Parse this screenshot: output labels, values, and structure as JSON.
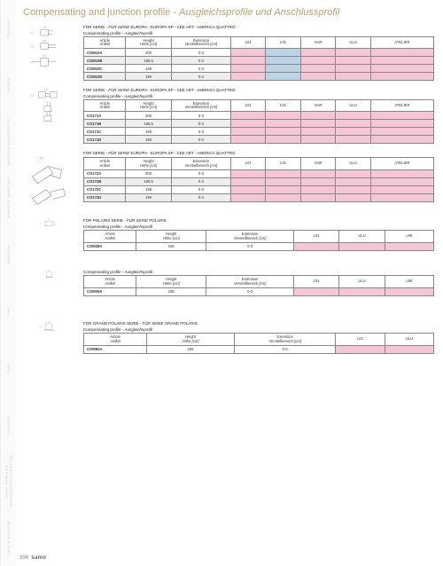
{
  "page_number": "396",
  "brand": "samo",
  "title_a": "Compensating and junction profile",
  "title_b": "Ausgleichsprofile und Anschlussprofil",
  "side_tabs": [
    "POLARIS",
    "ACRUX",
    "AMERICA QUATTRO SP",
    "AMERICA QUATTRO",
    "AMERICA",
    "CEE",
    "FLEX",
    "POLARIS",
    "BATH SCREENS BADEWANNENAUFSÄTZE",
    "INFO & SERVICE"
  ],
  "colors": {
    "pink": "#f5c6d6",
    "blue": "#bdd3e6",
    "grey": "#eeeeee",
    "border": "#888888"
  },
  "sections": [
    {
      "id": "s1",
      "serie": "FOR SERIE - FÜR SERIE EUROPA - EUROPA SP - CEE ART - AMERICA QUATTRO",
      "sub": "Compensating profile - Ausgleichsprofil",
      "dims": [
        "1,8",
        "4,1",
        "2,8",
        "1,8",
        "2,8",
        "1,8"
      ],
      "headers": [
        {
          "a": "Article",
          "b": "Artikel",
          "w": "12%"
        },
        {
          "a": "Height",
          "b": "Höhe [cm]",
          "w": "13%"
        },
        {
          "a": "Extension",
          "b": "Verstellbereich [cm]",
          "w": "17%"
        },
        {
          "a": "L01",
          "b": "",
          "w": "10%"
        },
        {
          "a": "L01",
          "b": "",
          "w": "10%"
        },
        {
          "a": "SAR",
          "b": "",
          "w": "10%"
        },
        {
          "a": "ULU",
          "b": "",
          "w": "10%"
        },
        {
          "a": "ATELIER",
          "b": "",
          "w": "18%"
        }
      ],
      "rows": [
        {
          "art": "COM10A",
          "h": "200",
          "e": "0-3",
          "c": [
            "pink",
            "blue",
            "pink",
            "pink",
            "pink"
          ]
        },
        {
          "art": "COM10B",
          "h": "196,5",
          "e": "0-3",
          "c": [
            "pink",
            "blue",
            "pink",
            "pink",
            "pink"
          ],
          "grey": true
        },
        {
          "art": "COM10C",
          "h": "195",
          "e": "0-3",
          "c": [
            "pink",
            "blue",
            "pink",
            "pink",
            "pink"
          ]
        },
        {
          "art": "COM10D",
          "h": "190",
          "e": "0-3",
          "c": [
            "pink",
            "blue",
            "pink",
            "pink",
            "pink"
          ],
          "grey": true
        }
      ]
    },
    {
      "id": "s2",
      "serie": "FOR SERIE - FÜR SERIE EUROPA - EUROPA SP - CEE ART - AMERICA QUATTRO",
      "sub": "Compensating profile - Ausgleichsprofil",
      "dims": [
        "1,9",
        "2,5"
      ],
      "headers": [
        {
          "a": "Article",
          "b": "Artikel",
          "w": "12%"
        },
        {
          "a": "Height",
          "b": "Höhe [cm]",
          "w": "13%"
        },
        {
          "a": "Extension",
          "b": "Verstellbereich [cm]",
          "w": "17%"
        },
        {
          "a": "L01",
          "b": "",
          "w": "10%"
        },
        {
          "a": "L01",
          "b": "",
          "w": "10%"
        },
        {
          "a": "SAR",
          "b": "",
          "w": "10%"
        },
        {
          "a": "ULU",
          "b": "",
          "w": "10%"
        },
        {
          "a": "ATELIER",
          "b": "",
          "w": "18%"
        }
      ],
      "rows": [
        {
          "art": "CO171A",
          "h": "200",
          "e": "0-3",
          "c": [
            "pink",
            "pink",
            "pink",
            "pink",
            "pink"
          ]
        },
        {
          "art": "CO171B",
          "h": "196,5",
          "e": "0-3",
          "c": [
            "pink",
            "pink",
            "pink",
            "pink",
            "pink"
          ],
          "grey": true
        },
        {
          "art": "CO171C",
          "h": "195",
          "e": "0-3",
          "c": [
            "pink",
            "pink",
            "pink",
            "pink",
            "pink"
          ]
        },
        {
          "art": "CO171D",
          "h": "190",
          "e": "0-3",
          "c": [
            "pink",
            "pink",
            "pink",
            "pink",
            "pink"
          ],
          "grey": true
        }
      ]
    },
    {
      "id": "s3",
      "serie": "FOR SERIE - FÜR SERIE EUROPA - EUROPA SP - CEE ART - AMERICA QUATTRO",
      "sub": "",
      "dims": [
        "4,5"
      ],
      "headers": [
        {
          "a": "Article",
          "b": "Artikel",
          "w": "12%"
        },
        {
          "a": "Height",
          "b": "Höhe [cm]",
          "w": "13%"
        },
        {
          "a": "Extension",
          "b": "Verstellbereich [cm]",
          "w": "17%"
        },
        {
          "a": "L01",
          "b": "",
          "w": "10%"
        },
        {
          "a": "L01",
          "b": "",
          "w": "10%"
        },
        {
          "a": "SAR",
          "b": "",
          "w": "10%"
        },
        {
          "a": "ULU",
          "b": "",
          "w": "10%"
        },
        {
          "a": "ATELIER",
          "b": "",
          "w": "18%"
        }
      ],
      "rows": [
        {
          "art": "CO172A",
          "h": "200",
          "e": "0-3",
          "c": [
            "pink",
            "pink",
            "pink",
            "pink",
            "pink"
          ]
        },
        {
          "art": "CO172B",
          "h": "196,5",
          "e": "0-3",
          "c": [
            "pink",
            "pink",
            "pink",
            "pink",
            "pink"
          ],
          "grey": true
        },
        {
          "art": "CO172C",
          "h": "195",
          "e": "0-3",
          "c": [
            "pink",
            "pink",
            "pink",
            "pink",
            "pink"
          ]
        },
        {
          "art": "CO172D",
          "h": "190",
          "e": "0-3",
          "c": [
            "pink",
            "pink",
            "pink",
            "pink",
            "pink"
          ],
          "grey": true
        }
      ]
    },
    {
      "id": "s4a",
      "serie": "FOR POLARIS SERIE - FÜR SERIE POLARIS",
      "sub": "Compensating profile - Ausgleichsprofil",
      "dims": [
        "0,8",
        "2,1"
      ],
      "headers": [
        {
          "a": "Article",
          "b": "Artikel",
          "w": "15%"
        },
        {
          "a": "Height",
          "b": "Höhe [cm]",
          "w": "20%"
        },
        {
          "a": "Extension",
          "b": "Verstellbereich [cm]",
          "w": "25%"
        },
        {
          "a": "L01",
          "b": "",
          "w": "13%"
        },
        {
          "a": "ULU",
          "b": "",
          "w": "13%"
        },
        {
          "a": "L96",
          "b": "",
          "w": "14%"
        }
      ],
      "rows": [
        {
          "art": "COM38A",
          "h": "195",
          "e": "0-3",
          "c": [
            "pink",
            "pink",
            "pink"
          ]
        }
      ]
    },
    {
      "id": "s4b",
      "serie": "",
      "sub": "Compensating profile - Ausgleichsprofil",
      "dims": [
        "2,0"
      ],
      "headers": [
        {
          "a": "Article",
          "b": "Artikel",
          "w": "15%"
        },
        {
          "a": "Height",
          "b": "Höhe [cm]",
          "w": "20%"
        },
        {
          "a": "Extension",
          "b": "Verstellbereich [cm]",
          "w": "25%"
        },
        {
          "a": "L01",
          "b": "",
          "w": "13%"
        },
        {
          "a": "ULU",
          "b": "",
          "w": "13%"
        },
        {
          "a": "L96",
          "b": "",
          "w": "14%"
        }
      ],
      "rows": [
        {
          "art": "COM39A",
          "h": "195",
          "e": "0-3",
          "c": [
            "pink",
            "pink",
            "pink"
          ]
        }
      ]
    },
    {
      "id": "s5",
      "serie": "FOR GRAND POLARIS SERIE - FÜR SERIE GRAND POLARIS",
      "sub": "Compensating profile - Ausgleichsprofil",
      "dims": [
        "2,0",
        "4,0"
      ],
      "headers": [
        {
          "a": "Article",
          "b": "Artikel",
          "w": "18%"
        },
        {
          "a": "Height",
          "b": "Höhe [cm]",
          "w": "25%"
        },
        {
          "a": "Extension",
          "b": "Verstellbereich [cm]",
          "w": "29%"
        },
        {
          "a": "L01",
          "b": "",
          "w": "14%"
        },
        {
          "a": "ULU",
          "b": "",
          "w": "14%"
        }
      ],
      "rows": [
        {
          "art": "COM50A",
          "h": "195",
          "e": "0-3",
          "c": [
            "pink",
            "pink"
          ]
        }
      ]
    }
  ]
}
